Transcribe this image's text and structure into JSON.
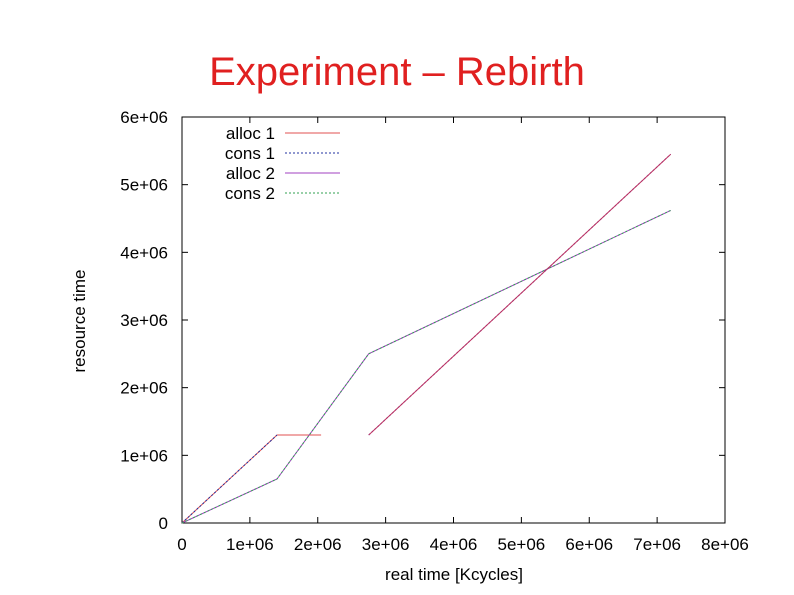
{
  "slide": {
    "title": "Experiment – Rebirth"
  },
  "chart_data": {
    "type": "line",
    "xlabel": "real time [Kcycles]",
    "ylabel": "resource time",
    "xlim": [
      0,
      8000000
    ],
    "ylim": [
      0,
      6000000
    ],
    "x_ticks": [
      {
        "value": 0,
        "label": "0"
      },
      {
        "value": 1000000,
        "label": "1e+06"
      },
      {
        "value": 2000000,
        "label": "2e+06"
      },
      {
        "value": 3000000,
        "label": "3e+06"
      },
      {
        "value": 4000000,
        "label": "4e+06"
      },
      {
        "value": 5000000,
        "label": "5e+06"
      },
      {
        "value": 6000000,
        "label": "6e+06"
      },
      {
        "value": 7000000,
        "label": "7e+06"
      },
      {
        "value": 8000000,
        "label": "8e+06"
      }
    ],
    "y_ticks": [
      {
        "value": 0,
        "label": "0"
      },
      {
        "value": 1000000,
        "label": "1e+06"
      },
      {
        "value": 2000000,
        "label": "2e+06"
      },
      {
        "value": 3000000,
        "label": "3e+06"
      },
      {
        "value": 4000000,
        "label": "4e+06"
      },
      {
        "value": 5000000,
        "label": "5e+06"
      },
      {
        "value": 6000000,
        "label": "6e+06"
      }
    ],
    "grid": false,
    "legend_position": "top-left",
    "series": [
      {
        "name": "alloc 1",
        "color": "#e05050",
        "dash": "solid",
        "points": [
          [
            0,
            0
          ],
          [
            1400000,
            1300000
          ],
          [
            2050000,
            1300000
          ]
        ]
      },
      {
        "name": "cons 1",
        "color": "#2030a0",
        "dash": "dotted",
        "points": [
          [
            0,
            0
          ],
          [
            1400000,
            1300000
          ]
        ]
      },
      {
        "name": "alloc 2",
        "color": "#a040c0",
        "dash": "solid",
        "points": [
          [
            0,
            0
          ],
          [
            1400000,
            650000
          ],
          [
            2750000,
            2500000
          ],
          [
            7200000,
            4620000
          ]
        ]
      },
      {
        "name": "cons 2",
        "color": "#30a050",
        "dash": "dotted",
        "points": [
          [
            0,
            0
          ],
          [
            1400000,
            650000
          ],
          [
            2750000,
            2500000
          ],
          [
            7200000,
            4620000
          ]
        ]
      },
      {
        "name": "",
        "color": "#2030a0",
        "dash": "dotted",
        "points": [
          [
            2750000,
            1300000
          ],
          [
            7200000,
            5450000
          ]
        ]
      },
      {
        "name": "",
        "color": "#c03060",
        "dash": "solid",
        "points": [
          [
            2750000,
            1300000
          ],
          [
            7200000,
            5450000
          ]
        ]
      }
    ]
  }
}
